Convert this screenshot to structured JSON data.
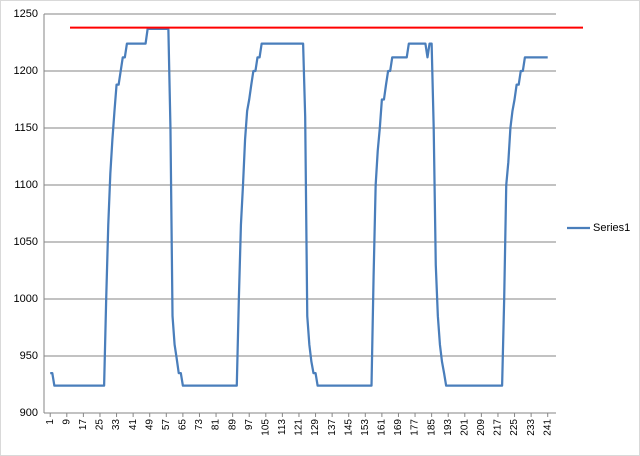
{
  "chart_data": {
    "type": "line",
    "x": [
      1,
      2,
      3,
      4,
      5,
      6,
      7,
      8,
      9,
      10,
      11,
      12,
      13,
      14,
      15,
      16,
      17,
      18,
      19,
      20,
      21,
      22,
      23,
      24,
      25,
      26,
      27,
      28,
      29,
      30,
      31,
      32,
      33,
      34,
      35,
      36,
      37,
      38,
      39,
      40,
      41,
      42,
      43,
      44,
      45,
      46,
      47,
      48,
      49,
      50,
      51,
      52,
      53,
      54,
      55,
      56,
      57,
      58,
      59,
      60,
      61,
      62,
      63,
      64,
      65,
      66,
      67,
      68,
      69,
      70,
      71,
      72,
      73,
      74,
      75,
      76,
      77,
      78,
      79,
      80,
      81,
      82,
      83,
      84,
      85,
      86,
      87,
      88,
      89,
      90,
      91,
      92,
      93,
      94,
      95,
      96,
      97,
      98,
      99,
      100,
      101,
      102,
      103,
      104,
      105,
      106,
      107,
      108,
      109,
      110,
      111,
      112,
      113,
      114,
      115,
      116,
      117,
      118,
      119,
      120,
      121,
      122,
      123,
      124,
      125,
      126,
      127,
      128,
      129,
      130,
      131,
      132,
      133,
      134,
      135,
      136,
      137,
      138,
      139,
      140,
      141,
      142,
      143,
      144,
      145,
      146,
      147,
      148,
      149,
      150,
      151,
      152,
      153,
      154,
      155,
      156,
      157,
      158,
      159,
      160,
      161,
      162,
      163,
      164,
      165,
      166,
      167,
      168,
      169,
      170,
      171,
      172,
      173,
      174,
      175,
      176,
      177,
      178,
      179,
      180,
      181,
      182,
      183,
      184,
      185,
      186,
      187,
      188,
      189,
      190,
      191,
      192,
      193,
      194,
      195,
      196,
      197,
      198,
      199,
      200,
      201,
      202,
      203,
      204,
      205,
      206,
      207,
      208,
      209,
      210,
      211,
      212,
      213,
      214,
      215,
      216,
      217,
      218,
      219,
      220,
      221,
      222,
      223,
      224,
      225,
      226,
      227,
      228,
      229,
      230,
      231,
      232,
      233,
      234,
      235,
      236,
      237,
      238,
      239,
      240,
      241
    ],
    "series": [
      {
        "name": "Series1",
        "color": "#4a7ebb",
        "values": [
          935,
          935,
          924,
          924,
          924,
          924,
          924,
          924,
          924,
          924,
          924,
          924,
          924,
          924,
          924,
          924,
          924,
          924,
          924,
          924,
          924,
          924,
          924,
          924,
          924,
          924,
          924,
          1000,
          1065,
          1110,
          1140,
          1165,
          1188,
          1188,
          1200,
          1212,
          1212,
          1224,
          1224,
          1224,
          1224,
          1224,
          1224,
          1224,
          1224,
          1224,
          1224,
          1237,
          1237,
          1237,
          1237,
          1237,
          1237,
          1237,
          1237,
          1237,
          1237,
          1237,
          1150,
          985,
          960,
          948,
          935,
          935,
          924,
          924,
          924,
          924,
          924,
          924,
          924,
          924,
          924,
          924,
          924,
          924,
          924,
          924,
          924,
          924,
          924,
          924,
          924,
          924,
          924,
          924,
          924,
          924,
          924,
          924,
          924,
          1000,
          1065,
          1100,
          1140,
          1165,
          1175,
          1188,
          1200,
          1200,
          1212,
          1212,
          1224,
          1224,
          1224,
          1224,
          1224,
          1224,
          1224,
          1224,
          1224,
          1224,
          1224,
          1224,
          1224,
          1224,
          1224,
          1224,
          1224,
          1224,
          1224,
          1224,
          1224,
          1160,
          985,
          960,
          945,
          935,
          935,
          924,
          924,
          924,
          924,
          924,
          924,
          924,
          924,
          924,
          924,
          924,
          924,
          924,
          924,
          924,
          924,
          924,
          924,
          924,
          924,
          924,
          924,
          924,
          924,
          924,
          924,
          924,
          1020,
          1100,
          1130,
          1150,
          1175,
          1175,
          1188,
          1200,
          1200,
          1212,
          1212,
          1212,
          1212,
          1212,
          1212,
          1212,
          1212,
          1224,
          1224,
          1224,
          1224,
          1224,
          1224,
          1224,
          1224,
          1224,
          1212,
          1224,
          1224,
          1150,
          1030,
          985,
          960,
          945,
          935,
          924,
          924,
          924,
          924,
          924,
          924,
          924,
          924,
          924,
          924,
          924,
          924,
          924,
          924,
          924,
          924,
          924,
          924,
          924,
          924,
          924,
          924,
          924,
          924,
          924,
          924,
          924,
          924,
          1000,
          1100,
          1120,
          1150,
          1165,
          1175,
          1188,
          1188,
          1200,
          1200,
          1212,
          1212,
          1212,
          1212,
          1212,
          1212,
          1212,
          1212,
          1212,
          1212,
          1212,
          1212
        ]
      }
    ],
    "xlim": [
      -2,
      245
    ],
    "xticks": [
      1,
      9,
      17,
      25,
      33,
      41,
      49,
      57,
      65,
      73,
      81,
      89,
      97,
      105,
      113,
      121,
      129,
      137,
      145,
      153,
      161,
      169,
      177,
      185,
      193,
      201,
      209,
      217,
      225,
      233,
      241
    ],
    "ylim": [
      900,
      1250
    ],
    "yticks": [
      900,
      950,
      1000,
      1050,
      1100,
      1150,
      1200,
      1250
    ],
    "grid": true,
    "legend": "right",
    "reference_line": {
      "value": 1238,
      "color": "#ff0000"
    }
  }
}
